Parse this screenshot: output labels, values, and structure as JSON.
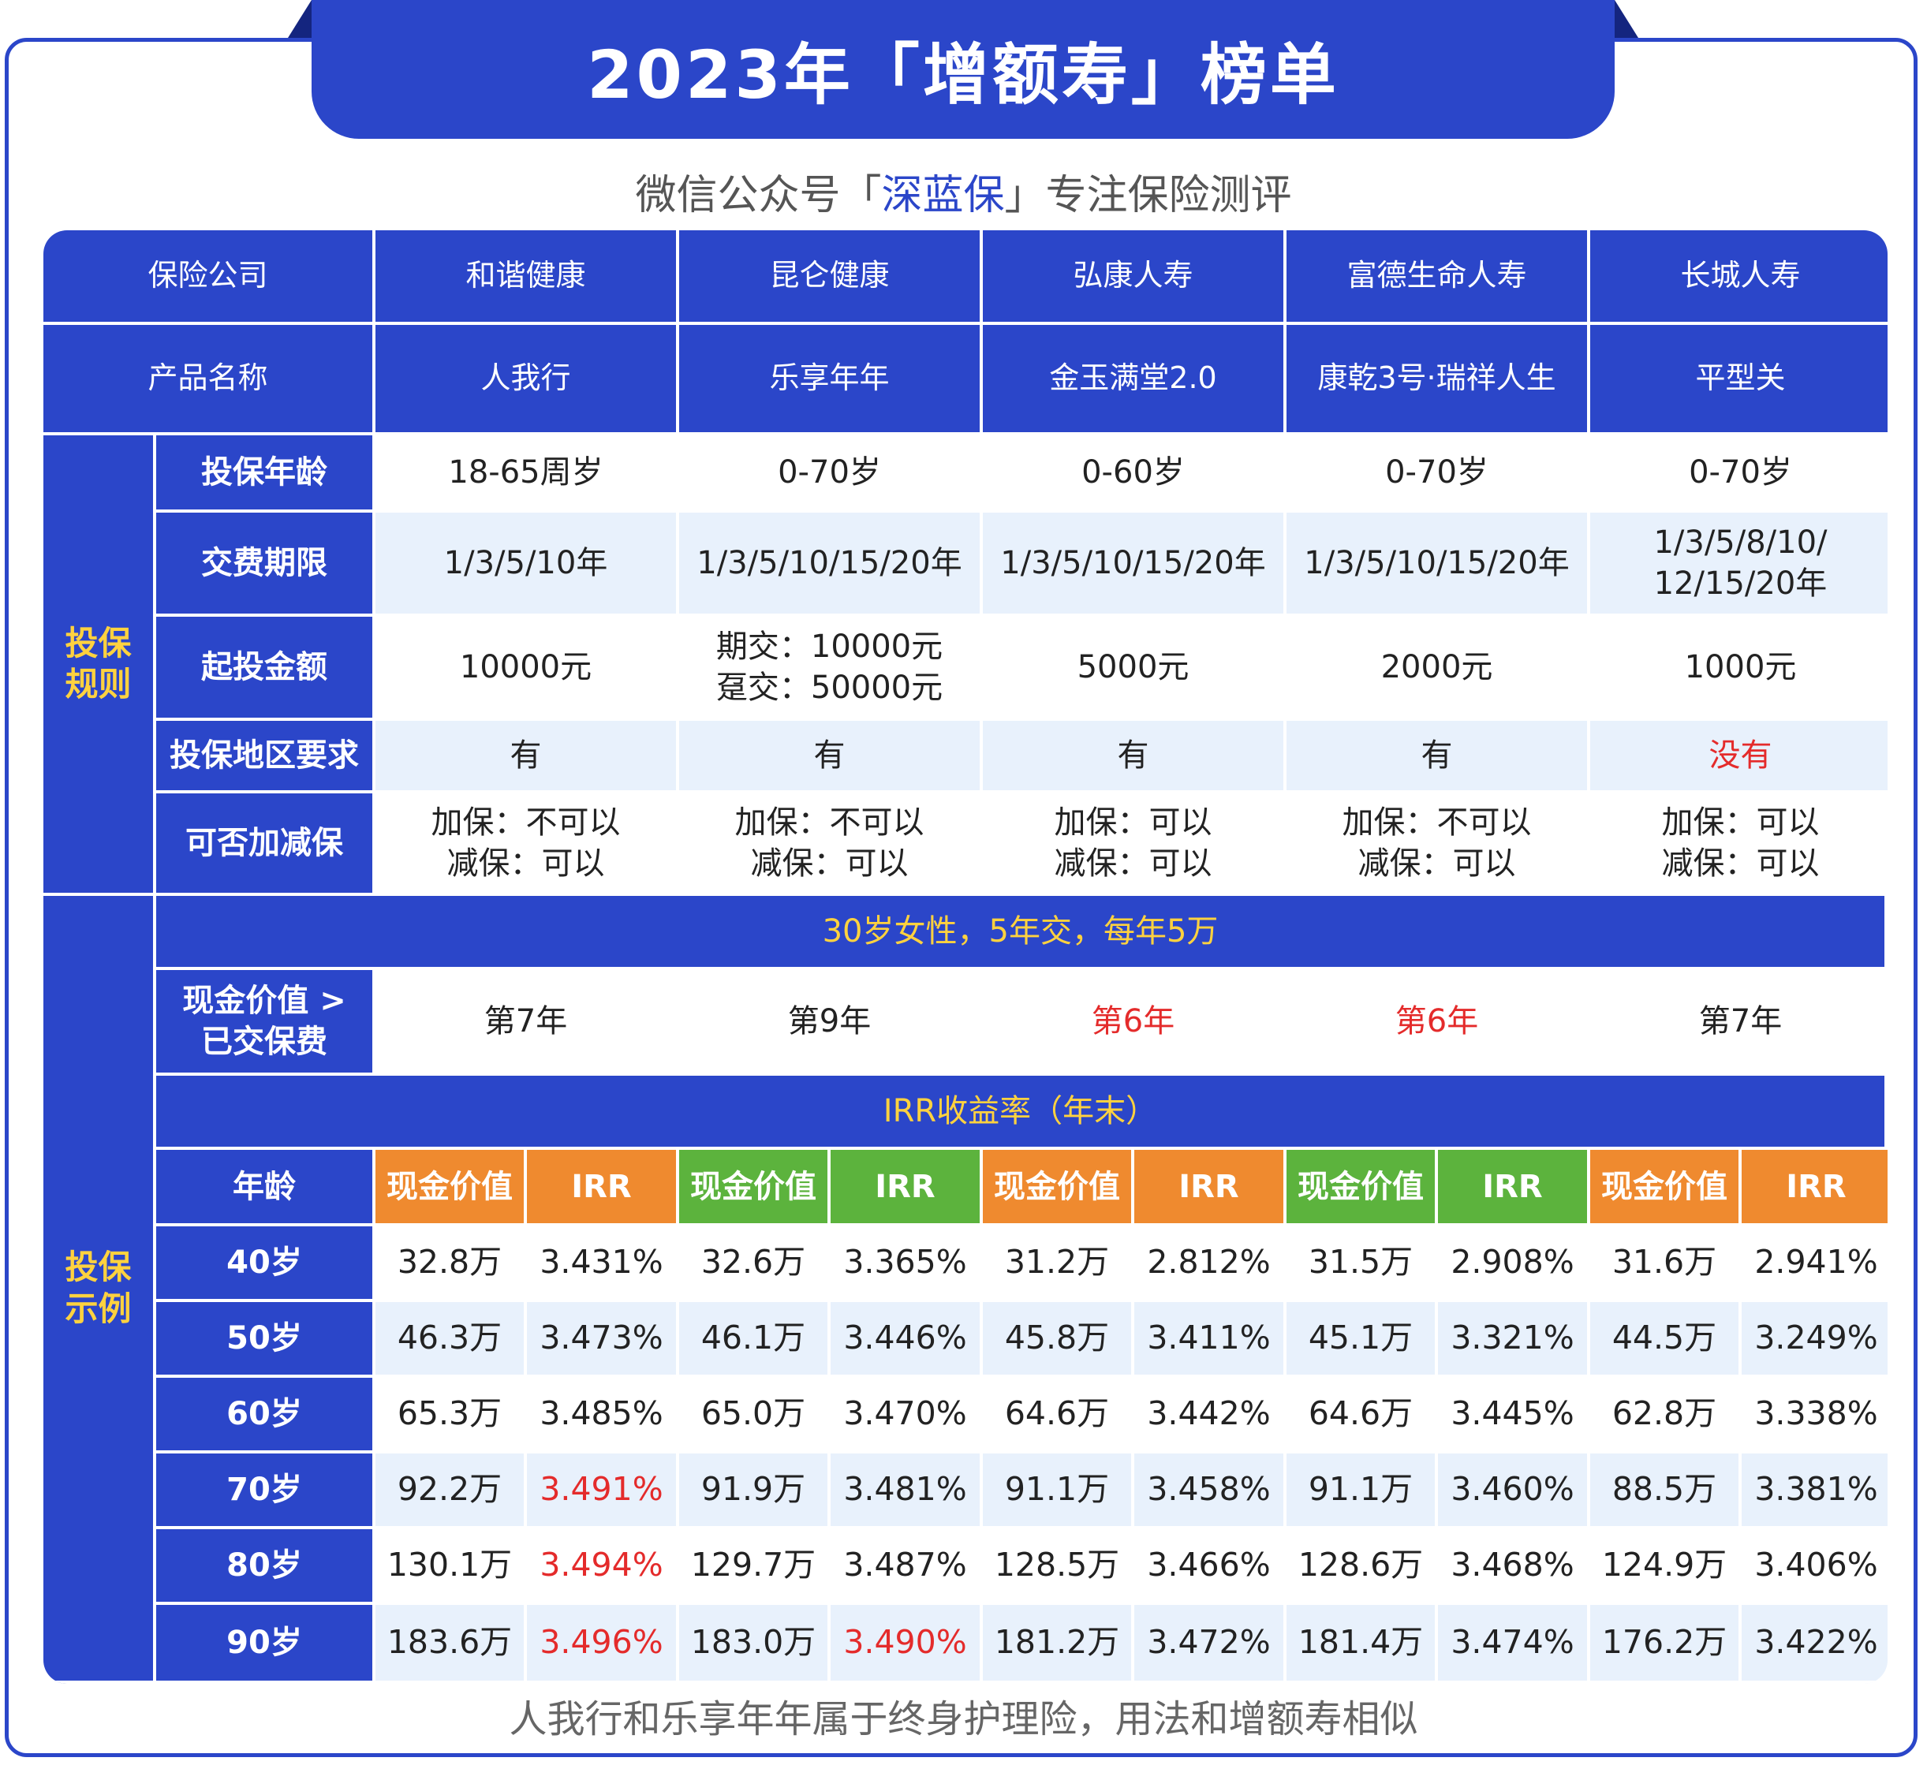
{
  "title": "2023年「增额寿」榜单",
  "subtitle": {
    "pre": "微信公众号「",
    "highlight": "深蓝保",
    "post": "」专注保险测评"
  },
  "footer": "人我行和乐享年年属于终身护理险，用法和增额寿相似",
  "table": {
    "company_label": "保险公司",
    "companies": [
      "和谐健康",
      "昆仑健康",
      "弘康人寿",
      "富德生命人寿",
      "长城人寿"
    ],
    "product_label": "产品名称",
    "products": [
      "人我行",
      "乐享年年",
      "金玉满堂2.0",
      "康乾3号·瑞祥人生",
      "平型关"
    ],
    "rules_section": "投保\n规则",
    "rules": [
      {
        "label": "投保年龄",
        "values": [
          "18-65周岁",
          "0-70岁",
          "0-60岁",
          "0-70岁",
          "0-70岁"
        ]
      },
      {
        "label": "交费期限",
        "values": [
          "1/3/5/10年",
          "1/3/5/10/15/20年",
          "1/3/5/10/15/20年",
          "1/3/5/10/15/20年",
          "1/3/5/8/10/\n12/15/20年"
        ]
      },
      {
        "label": "起投金额",
        "values": [
          "10000元",
          "期交：10000元\n趸交：50000元",
          "5000元",
          "2000元",
          "1000元"
        ]
      },
      {
        "label": "投保地区要求",
        "values": [
          "有",
          "有",
          "有",
          "有",
          "没有"
        ]
      },
      {
        "label": "可否加减保",
        "values": [
          "加保：不可以\n减保：可以",
          "加保：不可以\n减保：可以",
          "加保：可以\n减保：可以",
          "加保：不可以\n减保：可以",
          "加保：可以\n减保：可以"
        ]
      }
    ],
    "example_section": "投保\n示例",
    "example_band": "30岁女性，5年交，每年5万",
    "breakeven": {
      "label": "现金价值 >\n已交保费",
      "values": [
        "第7年",
        "第9年",
        "第6年",
        "第6年",
        "第7年"
      ]
    },
    "irr_band": "IRR收益率（年末）",
    "age_label": "年龄",
    "cv_label": "现金价值",
    "irr_label": "IRR",
    "rows": [
      {
        "age": "40岁",
        "values": [
          "32.8万",
          "3.431%",
          "32.6万",
          "3.365%",
          "31.2万",
          "2.812%",
          "31.5万",
          "2.908%",
          "31.6万",
          "2.941%"
        ]
      },
      {
        "age": "50岁",
        "values": [
          "46.3万",
          "3.473%",
          "46.1万",
          "3.446%",
          "45.8万",
          "3.411%",
          "45.1万",
          "3.321%",
          "44.5万",
          "3.249%"
        ]
      },
      {
        "age": "60岁",
        "values": [
          "65.3万",
          "3.485%",
          "65.0万",
          "3.470%",
          "64.6万",
          "3.442%",
          "64.6万",
          "3.445%",
          "62.8万",
          "3.338%"
        ]
      },
      {
        "age": "70岁",
        "values": [
          "92.2万",
          "3.491%",
          "91.9万",
          "3.481%",
          "91.1万",
          "3.458%",
          "91.1万",
          "3.460%",
          "88.5万",
          "3.381%"
        ]
      },
      {
        "age": "80岁",
        "values": [
          "130.1万",
          "3.494%",
          "129.7万",
          "3.487%",
          "128.5万",
          "3.466%",
          "128.6万",
          "3.468%",
          "124.9万",
          "3.406%"
        ]
      },
      {
        "age": "90岁",
        "values": [
          "183.6万",
          "3.496%",
          "183.0万",
          "3.490%",
          "181.2万",
          "3.472%",
          "181.4万",
          "3.474%",
          "176.2万",
          "3.422%"
        ]
      }
    ]
  },
  "colors": {
    "primary": "#2b46c9",
    "accent_yellow": "#ffd23f",
    "highlight_red": "#e42b2b",
    "header_orange": "#ef8a2f",
    "header_green": "#5cb33d",
    "row_light": "#e8f1fc"
  }
}
